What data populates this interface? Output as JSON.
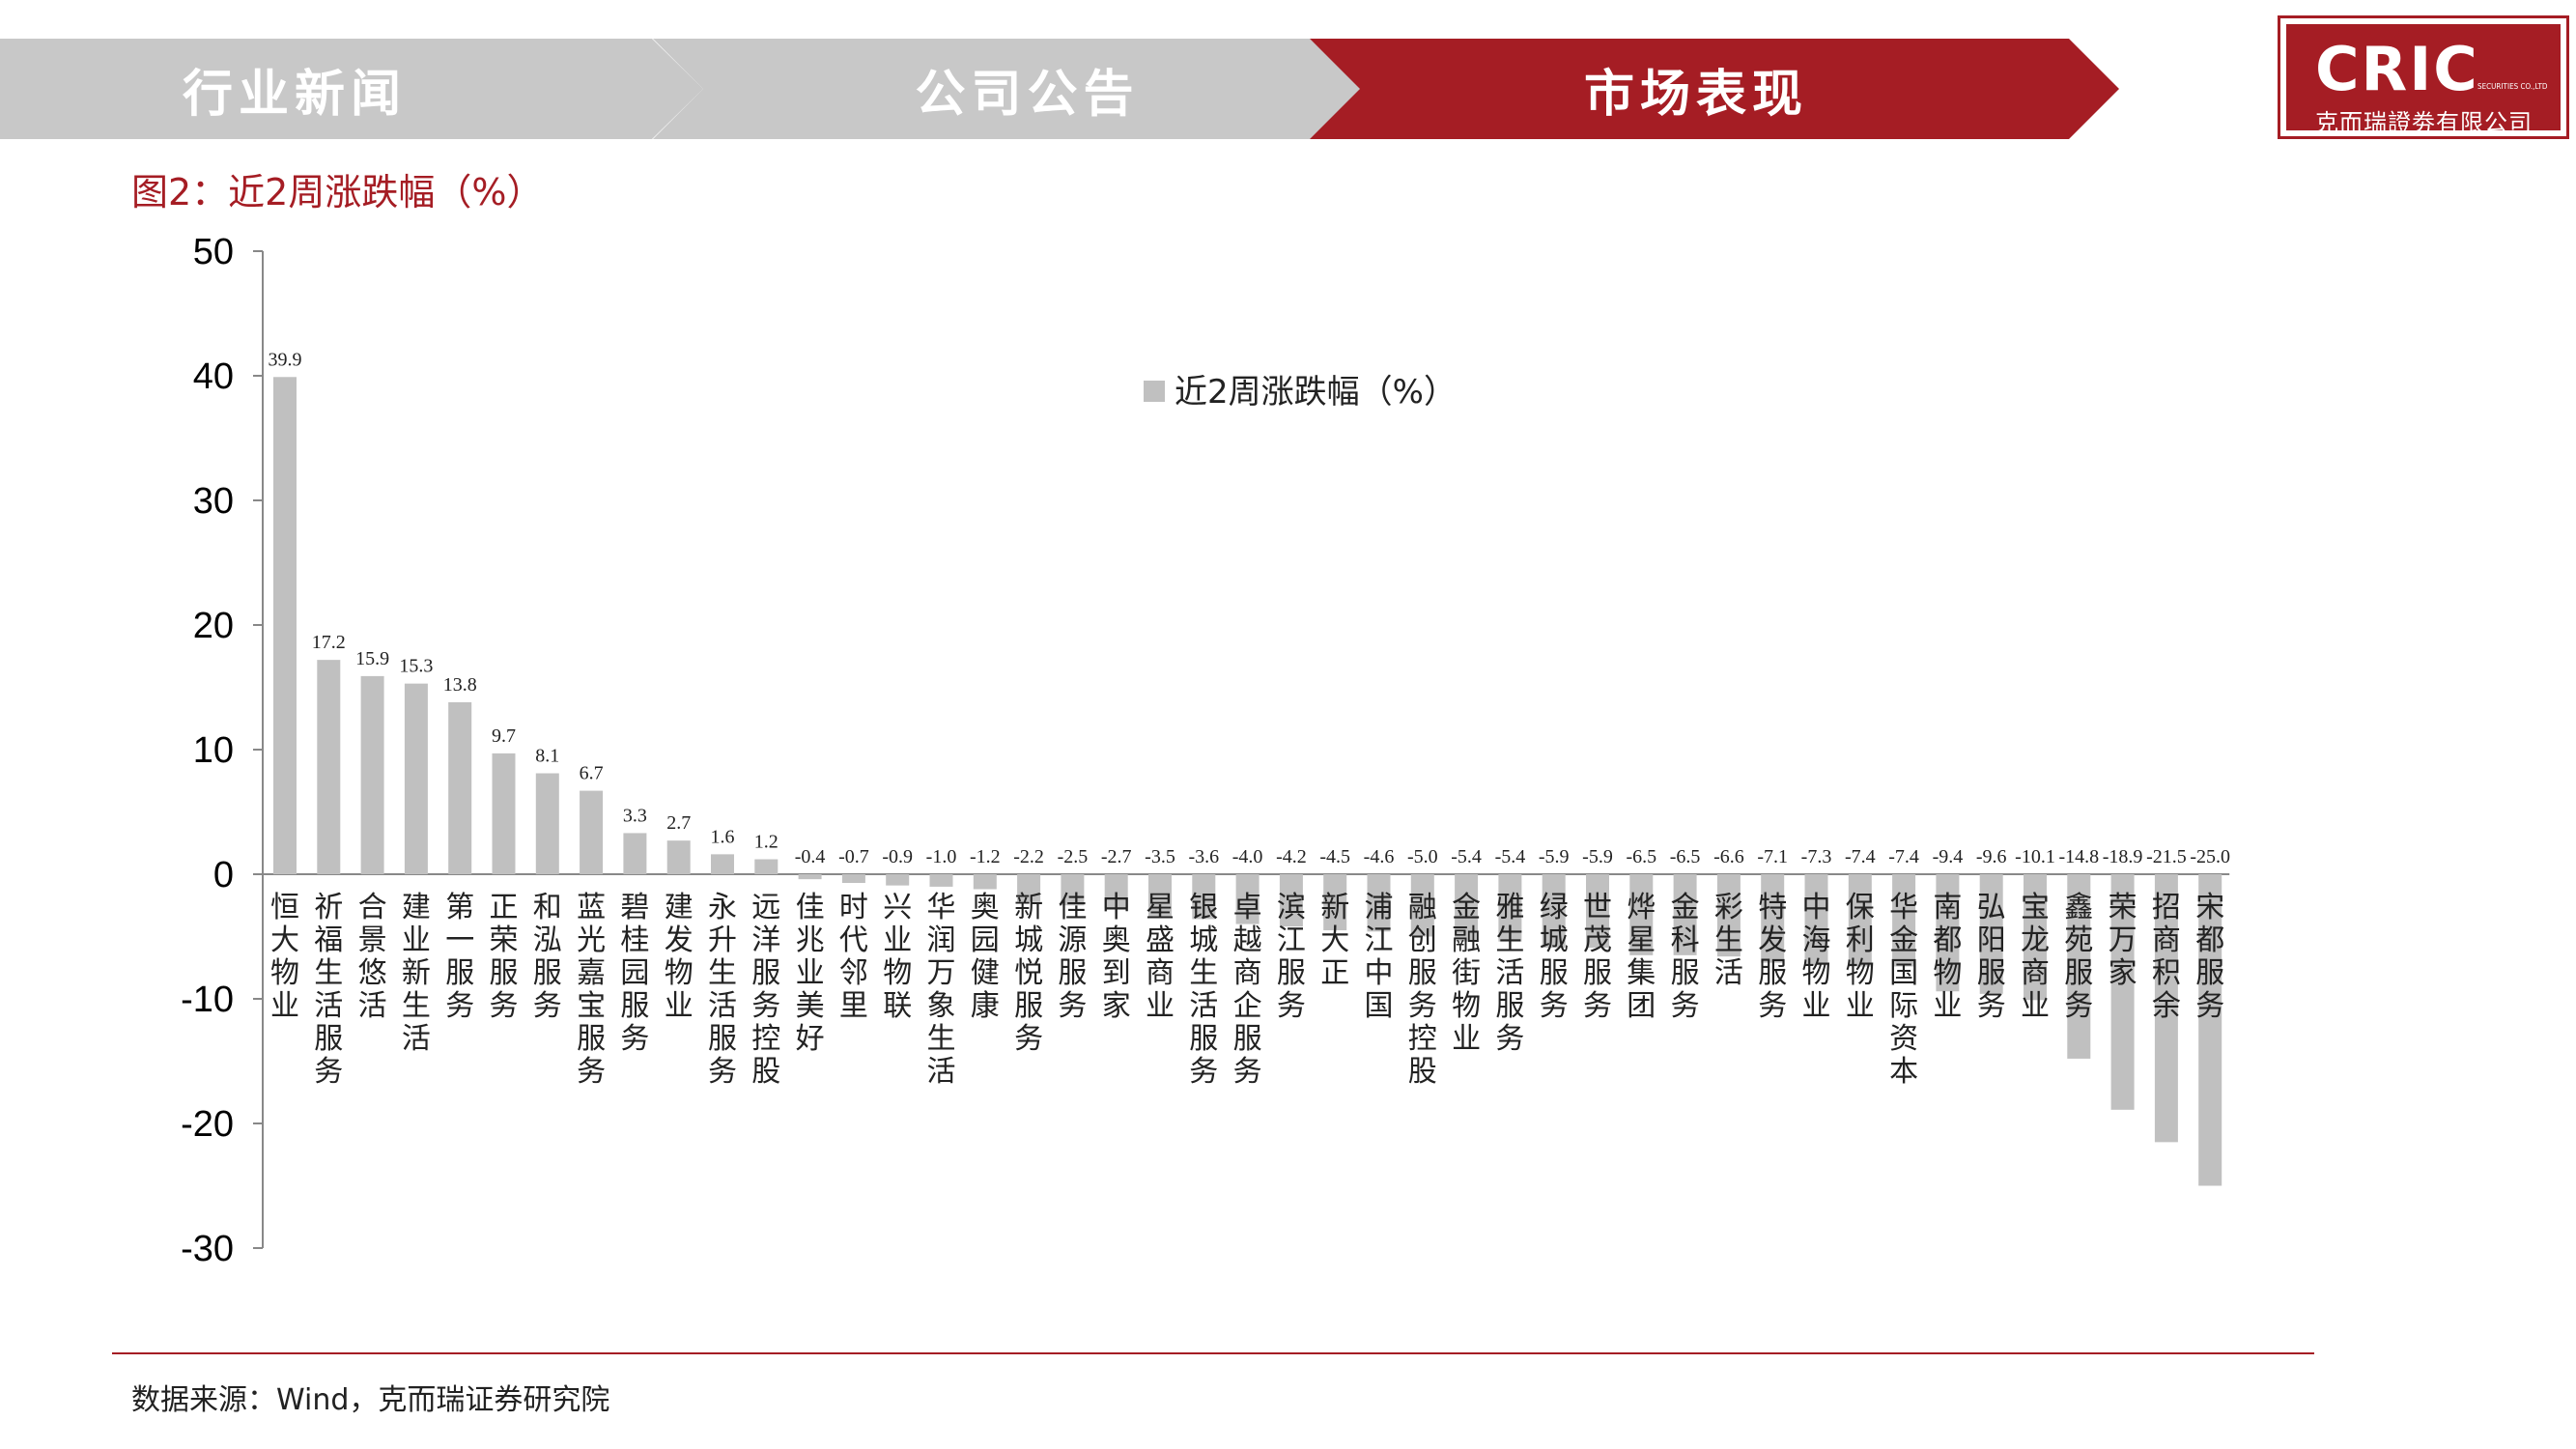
{
  "nav": {
    "tabs": [
      {
        "label": "行业新闻",
        "active": false
      },
      {
        "label": "公司公告",
        "active": false
      },
      {
        "label": "市场表现",
        "active": true
      }
    ],
    "colors": {
      "inactive": "#c8c8c8",
      "active": "#a51d24"
    }
  },
  "logo": {
    "mark": "CRIC",
    "subtitle": "SECURITIES CO.,LTD",
    "name_cn": "克而瑞證劵有限公司"
  },
  "figure_title": "图2：近2周涨跌幅（%）",
  "source_note": "数据来源：Wind，克而瑞证券研究院",
  "chart_data": {
    "type": "bar",
    "title": "",
    "xlabel": "",
    "ylabel": "",
    "ylim": [
      -30,
      50
    ],
    "yticks": [
      50,
      40,
      30,
      20,
      10,
      0,
      -10,
      -20,
      -30
    ],
    "grid": false,
    "legend_position": "top-center",
    "bar_color": "#c0c0c0",
    "categories": [
      "恒大物业",
      "祈福生活服务",
      "合景悠活",
      "建业新生活",
      "第一服务",
      "正荣服务",
      "和泓服务",
      "蓝光嘉宝服务",
      "碧桂园服务",
      "建发物业",
      "永升生活服务",
      "远洋服务控股",
      "佳兆业美好",
      "时代邻里",
      "兴业物联",
      "华润万象生活",
      "奥园健康",
      "新城悦服务",
      "佳源服务",
      "中奥到家",
      "星盛商业",
      "银城生活服务",
      "卓越商企服务",
      "滨江服务",
      "新大正",
      "浦江中国",
      "融创服务控股",
      "金融街物业",
      "雅生活服务",
      "绿城服务",
      "世茂服务",
      "烨星集团",
      "金科服务",
      "彩生活",
      "特发服务",
      "中海物业",
      "保利物业",
      "华金国际资本",
      "南都物业",
      "弘阳服务",
      "宝龙商业",
      "鑫苑服务",
      "荣万家",
      "招商积余",
      "宋都服务"
    ],
    "series": [
      {
        "name": "近2周涨跌幅（%）",
        "values": [
          39.9,
          17.2,
          15.9,
          15.3,
          13.8,
          9.7,
          8.1,
          6.7,
          3.3,
          2.7,
          1.6,
          1.2,
          -0.4,
          -0.7,
          -0.9,
          -1.0,
          -1.2,
          -2.2,
          -2.5,
          -2.7,
          -3.5,
          -3.6,
          -4.0,
          -4.2,
          -4.5,
          -4.6,
          -5.0,
          -5.4,
          -5.4,
          -5.9,
          -5.9,
          -6.5,
          -6.5,
          -6.6,
          -7.1,
          -7.3,
          -7.4,
          -7.4,
          -9.4,
          -9.6,
          -10.1,
          -14.8,
          -18.9,
          -21.5,
          -25.0
        ]
      }
    ]
  }
}
